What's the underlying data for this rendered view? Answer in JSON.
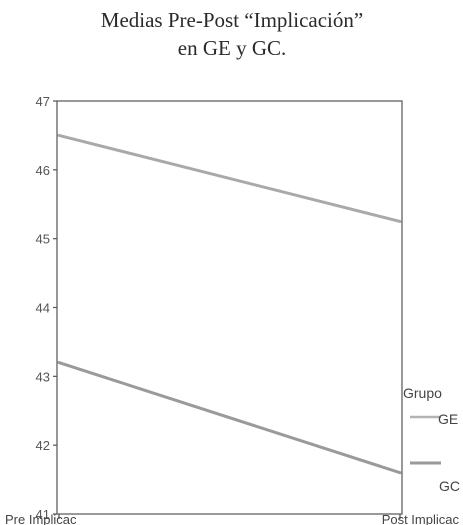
{
  "title_lines": [
    "Medias Pre-Post “Implicación”",
    "en GE y GC."
  ],
  "chart_data": {
    "type": "line",
    "title": "Medias Pre-Post “Implicación” en GE y GC.",
    "categories": [
      "Pre Implicac",
      "Post Implicac"
    ],
    "series": [
      {
        "name": "GE",
        "values": [
          46.5,
          45.25
        ],
        "color": "#a9a9a9"
      },
      {
        "name": "GC",
        "values": [
          43.2,
          41.6
        ],
        "color": "#9a9a9a"
      }
    ],
    "ylim": [
      41,
      47
    ],
    "yticks": [
      41,
      42,
      43,
      44,
      45,
      46,
      47
    ],
    "legend_title": "Grupo",
    "legend_position": "right",
    "grid": false
  }
}
